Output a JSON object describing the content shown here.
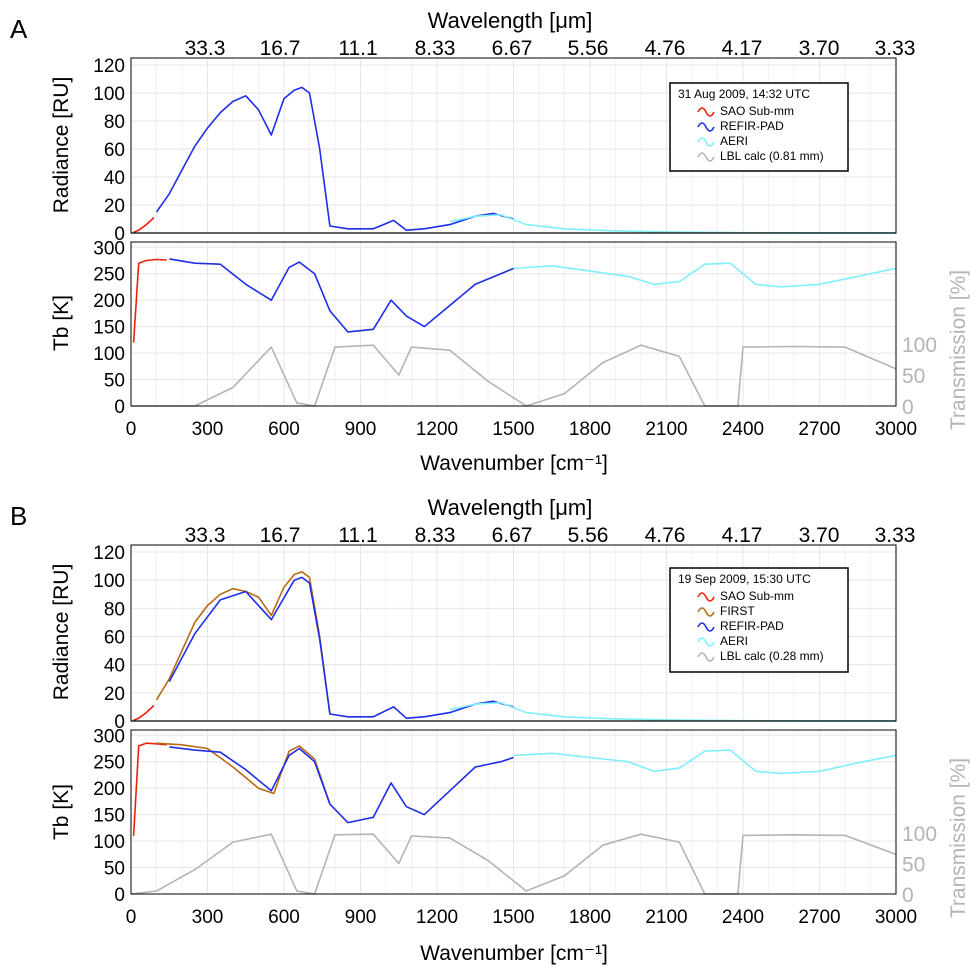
{
  "panels": [
    {
      "letter": "A",
      "top_axis_label": "Wavelength [μm]",
      "top_ticks": [
        "33.3",
        "16.7",
        "11.1",
        "8.33",
        "6.67",
        "5.56",
        "4.76",
        "4.17",
        "3.70",
        "3.33"
      ],
      "bottom_xlabel": "Wavenumber [cm⁻¹]",
      "radiance_ylabel": "Radiance [RU]",
      "tb_ylabel": "Tb [K]",
      "transmission_ylabel": "Transmission [%]",
      "legend_title": "31 Aug 2009, 14:32 UTC",
      "legend_items": [
        {
          "label": "SAO Sub-mm",
          "color": "#e8220a"
        },
        {
          "label": "REFIR-PAD",
          "color": "#1e2ee6"
        },
        {
          "label": "AERI",
          "color": "#7ff0fa"
        },
        {
          "label": "LBL calc (0.81 mm)",
          "color": "#b4b4b4"
        }
      ]
    },
    {
      "letter": "B",
      "top_axis_label": "Wavelength [μm]",
      "top_ticks": [
        "33.3",
        "16.7",
        "11.1",
        "8.33",
        "6.67",
        "5.56",
        "4.76",
        "4.17",
        "3.70",
        "3.33"
      ],
      "bottom_xlabel": "Wavenumber [cm⁻¹]",
      "radiance_ylabel": "Radiance [RU]",
      "tb_ylabel": "Tb [K]",
      "transmission_ylabel": "Transmission [%]",
      "legend_title": "19 Sep 2009, 15:30 UTC",
      "legend_items": [
        {
          "label": "SAO Sub-mm",
          "color": "#e8220a"
        },
        {
          "label": "FIRST",
          "color": "#b86a14"
        },
        {
          "label": "REFIR-PAD",
          "color": "#1e2ee6"
        },
        {
          "label": "AERI",
          "color": "#7ff0fa"
        },
        {
          "label": "LBL calc (0.28 mm)",
          "color": "#b4b4b4"
        }
      ]
    }
  ],
  "chart_data": [
    {
      "type": "line",
      "panel": "A",
      "xlabel": "Wavenumber [cm⁻¹]",
      "ylabel": "Radiance [RU]",
      "xlim": [
        0,
        3000
      ],
      "ylim": [
        0,
        125
      ],
      "x_ticks": [
        0,
        300,
        600,
        900,
        1200,
        1500,
        1800,
        2100,
        2400,
        2700,
        3000
      ],
      "y_ticks": [
        0,
        20,
        40,
        60,
        80,
        100,
        120
      ],
      "grid": true,
      "legend_position": "top-right",
      "series": [
        {
          "name": "SAO Sub-mm",
          "x": [
            10,
            30,
            60,
            90
          ],
          "y": [
            0.5,
            2,
            6,
            11
          ]
        },
        {
          "name": "REFIR-PAD",
          "x": [
            100,
            150,
            200,
            250,
            300,
            350,
            400,
            450,
            500,
            550,
            600,
            640,
            670,
            700,
            740,
            780,
            850,
            950,
            1030,
            1080,
            1150,
            1250,
            1350,
            1420,
            1500
          ],
          "y": [
            15,
            28,
            45,
            62,
            75,
            86,
            94,
            98,
            88,
            70,
            96,
            102,
            104,
            100,
            60,
            5,
            3,
            3,
            9,
            2,
            3,
            6,
            12,
            14,
            10
          ]
        },
        {
          "name": "AERI",
          "x": [
            1250,
            1350,
            1450,
            1550,
            1700,
            1900,
            2100,
            2400,
            2700,
            3000
          ],
          "y": [
            8,
            12,
            13,
            6,
            3,
            1.5,
            0.8,
            0.2,
            0.1,
            0.1
          ]
        },
        {
          "name": "LBL calc (0.81 mm)",
          "x": [
            0,
            500,
            1000,
            1500,
            2000,
            2500,
            3000
          ],
          "y": [
            0,
            0,
            0,
            0,
            0,
            0,
            0
          ]
        }
      ]
    },
    {
      "type": "line",
      "panel": "A",
      "xlabel": "Wavenumber [cm⁻¹]",
      "ylabel": "Tb [K]",
      "y2label": "Transmission [%]",
      "xlim": [
        0,
        3000
      ],
      "ylim": [
        0,
        310
      ],
      "x_ticks": [
        0,
        300,
        600,
        900,
        1200,
        1500,
        1800,
        2100,
        2400,
        2700,
        3000
      ],
      "y_ticks": [
        0,
        50,
        100,
        150,
        200,
        250,
        300
      ],
      "y2_ticks": [
        0,
        50,
        100
      ],
      "grid": true,
      "series": [
        {
          "name": "SAO Sub-mm",
          "x": [
            10,
            30,
            60,
            100,
            140
          ],
          "y": [
            120,
            270,
            275,
            277,
            276
          ]
        },
        {
          "name": "REFIR-PAD",
          "x": [
            150,
            250,
            350,
            450,
            550,
            620,
            660,
            720,
            780,
            850,
            950,
            1020,
            1080,
            1150,
            1250,
            1350,
            1450,
            1500
          ],
          "y": [
            278,
            270,
            268,
            230,
            200,
            262,
            272,
            250,
            180,
            140,
            145,
            200,
            170,
            150,
            190,
            230,
            250,
            260
          ]
        },
        {
          "name": "AERI",
          "x": [
            1500,
            1650,
            1800,
            1950,
            2050,
            2150,
            2250,
            2350,
            2450,
            2550,
            2700,
            2850,
            3000
          ],
          "y": [
            260,
            265,
            255,
            245,
            230,
            235,
            268,
            270,
            230,
            225,
            230,
            245,
            260
          ]
        },
        {
          "name": "LBL calc (0.81 mm) transmission",
          "x": [
            0,
            100,
            250,
            400,
            550,
            650,
            720,
            800,
            950,
            1050,
            1100,
            1250,
            1400,
            1550,
            1700,
            1850,
            2000,
            2150,
            2250,
            2380,
            2400,
            2600,
            2800,
            3000
          ],
          "y": [
            0,
            0,
            0,
            30,
            95,
            5,
            0,
            95,
            98,
            50,
            95,
            90,
            40,
            0,
            20,
            70,
            98,
            80,
            0,
            0,
            95,
            96,
            95,
            60
          ]
        }
      ]
    },
    {
      "type": "line",
      "panel": "B",
      "xlabel": "Wavenumber [cm⁻¹]",
      "ylabel": "Radiance [RU]",
      "xlim": [
        0,
        3000
      ],
      "ylim": [
        0,
        125
      ],
      "x_ticks": [
        0,
        300,
        600,
        900,
        1200,
        1500,
        1800,
        2100,
        2400,
        2700,
        3000
      ],
      "y_ticks": [
        0,
        20,
        40,
        60,
        80,
        100,
        120
      ],
      "grid": true,
      "legend_position": "top-right",
      "series": [
        {
          "name": "SAO Sub-mm",
          "x": [
            10,
            30,
            60,
            90
          ],
          "y": [
            0.5,
            2,
            6,
            11
          ]
        },
        {
          "name": "FIRST",
          "x": [
            100,
            150,
            200,
            250,
            300,
            350,
            400,
            450,
            500,
            550,
            600,
            640,
            670,
            700,
            740,
            780
          ],
          "y": [
            15,
            30,
            50,
            70,
            82,
            90,
            94,
            92,
            88,
            75,
            95,
            104,
            106,
            102,
            60,
            5
          ]
        },
        {
          "name": "REFIR-PAD",
          "x": [
            150,
            250,
            350,
            450,
            550,
            640,
            670,
            700,
            740,
            780,
            850,
            950,
            1030,
            1080,
            1150,
            1250,
            1350,
            1420,
            1500
          ],
          "y": [
            28,
            62,
            86,
            92,
            72,
            100,
            102,
            98,
            58,
            5,
            3,
            3,
            10,
            2,
            3,
            6,
            12,
            14,
            10
          ]
        },
        {
          "name": "AERI",
          "x": [
            1250,
            1350,
            1450,
            1550,
            1700,
            1900,
            2100,
            2400,
            2700,
            3000
          ],
          "y": [
            8,
            12,
            13,
            6,
            3,
            1.5,
            0.8,
            0.2,
            0.1,
            0.1
          ]
        },
        {
          "name": "LBL calc (0.28 mm)",
          "x": [
            0,
            500,
            1000,
            1500,
            2000,
            2500,
            3000
          ],
          "y": [
            0,
            0,
            0,
            0,
            0,
            0,
            0
          ]
        }
      ]
    },
    {
      "type": "line",
      "panel": "B",
      "xlabel": "Wavenumber [cm⁻¹]",
      "ylabel": "Tb [K]",
      "y2label": "Transmission [%]",
      "xlim": [
        0,
        3000
      ],
      "ylim": [
        0,
        310
      ],
      "x_ticks": [
        0,
        300,
        600,
        900,
        1200,
        1500,
        1800,
        2100,
        2400,
        2700,
        3000
      ],
      "y_ticks": [
        0,
        50,
        100,
        150,
        200,
        250,
        300
      ],
      "y2_ticks": [
        0,
        50,
        100
      ],
      "grid": true,
      "series": [
        {
          "name": "SAO Sub-mm",
          "x": [
            10,
            30,
            60,
            100,
            140
          ],
          "y": [
            110,
            280,
            285,
            284,
            282
          ]
        },
        {
          "name": "FIRST",
          "x": [
            100,
            200,
            300,
            400,
            500,
            560,
            620,
            660,
            720,
            780
          ],
          "y": [
            285,
            282,
            275,
            240,
            200,
            190,
            270,
            280,
            255,
            170
          ]
        },
        {
          "name": "REFIR-PAD",
          "x": [
            150,
            250,
            350,
            450,
            550,
            620,
            660,
            720,
            780,
            850,
            950,
            1020,
            1080,
            1150,
            1250,
            1350,
            1450,
            1500
          ],
          "y": [
            278,
            272,
            268,
            235,
            195,
            262,
            275,
            250,
            170,
            135,
            145,
            210,
            165,
            150,
            195,
            240,
            250,
            258
          ]
        },
        {
          "name": "AERI",
          "x": [
            1500,
            1650,
            1800,
            1950,
            2050,
            2150,
            2250,
            2350,
            2450,
            2550,
            2700,
            2850,
            3000
          ],
          "y": [
            262,
            266,
            258,
            250,
            232,
            238,
            270,
            272,
            232,
            228,
            232,
            248,
            262
          ]
        },
        {
          "name": "LBL calc (0.28 mm) transmission",
          "x": [
            0,
            100,
            250,
            400,
            550,
            650,
            720,
            800,
            950,
            1050,
            1100,
            1250,
            1400,
            1550,
            1700,
            1850,
            2000,
            2150,
            2250,
            2380,
            2400,
            2600,
            2800,
            3000
          ],
          "y": [
            0,
            5,
            40,
            85,
            98,
            5,
            0,
            97,
            98,
            50,
            95,
            92,
            55,
            5,
            30,
            80,
            98,
            85,
            0,
            0,
            96,
            97,
            96,
            65
          ]
        }
      ]
    }
  ]
}
